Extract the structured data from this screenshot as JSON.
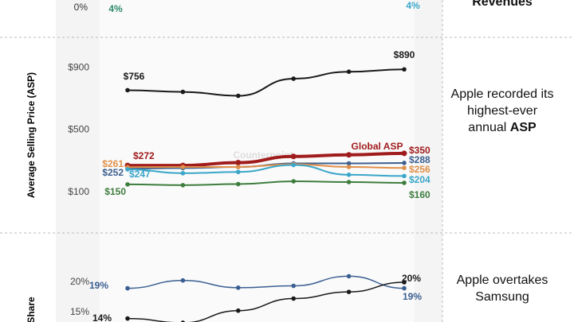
{
  "chart_data": [
    {
      "type": "line",
      "yticks": [
        {
          "value": 0,
          "label": "0%"
        }
      ],
      "annotations": [
        {
          "text": "4%",
          "color": "#2e8b6a"
        },
        {
          "text": "4%",
          "color": "#3aa6c9"
        }
      ],
      "note_bold": "Revenues"
    },
    {
      "type": "line",
      "ylabel": "Average Selling Price (ASP)",
      "ylim": [
        0,
        1000
      ],
      "yticks": [
        {
          "value": 900,
          "label": "$900"
        },
        {
          "value": 500,
          "label": "$500"
        },
        {
          "value": 100,
          "label": "$100"
        }
      ],
      "grid": false,
      "series": [
        {
          "color": "#1a1a1a",
          "width": 2,
          "values": [
            756,
            745,
            720,
            830,
            875,
            890
          ],
          "value_labels": [
            "$756",
            null,
            null,
            null,
            null,
            "$890"
          ]
        },
        {
          "name": "Global ASP",
          "color": "#a01c1c",
          "width": 4,
          "values": [
            272,
            272,
            290,
            330,
            340,
            350
          ],
          "value_labels": [
            "$272",
            null,
            null,
            null,
            null,
            "$350"
          ]
        },
        {
          "color": "#3d5f8f",
          "width": 2,
          "values": [
            252,
            255,
            262,
            285,
            285,
            288
          ],
          "value_labels": [
            "$252",
            null,
            null,
            null,
            null,
            "$288"
          ]
        },
        {
          "color": "#e0904a",
          "width": 2,
          "values": [
            261,
            262,
            262,
            280,
            262,
            256
          ],
          "value_labels": [
            "$261",
            null,
            null,
            null,
            null,
            "$256"
          ]
        },
        {
          "color": "#3aa6c9",
          "width": 2,
          "values": [
            247,
            222,
            230,
            275,
            212,
            204
          ],
          "value_labels": [
            "$247",
            null,
            null,
            null,
            null,
            "$204"
          ]
        },
        {
          "color": "#3e7d3e",
          "width": 2,
          "values": [
            150,
            145,
            152,
            170,
            165,
            160
          ],
          "value_labels": [
            "$150",
            null,
            null,
            null,
            null,
            "$160"
          ]
        }
      ],
      "watermark": "Counterpoint",
      "note": "Apple recorded its highest-ever annual",
      "note_bold": "ASP"
    },
    {
      "type": "line",
      "ylabel": "Share",
      "ylim": [
        12,
        26
      ],
      "yticks": [
        {
          "value": 20,
          "label": "20%"
        },
        {
          "value": 15,
          "label": "15%"
        }
      ],
      "series": [
        {
          "color": "#3b5e92",
          "width": 1.5,
          "values": [
            19,
            20.3,
            19.1,
            19.4,
            21,
            19
          ],
          "value_labels": [
            "19%",
            null,
            null,
            null,
            null,
            "19%"
          ]
        },
        {
          "color": "#1a1a1a",
          "width": 1.5,
          "values": [
            14,
            13.3,
            15.3,
            17.3,
            18.4,
            20
          ],
          "value_labels": [
            "14%",
            null,
            null,
            null,
            null,
            "20%"
          ]
        }
      ],
      "note": "Apple overtakes Samsung"
    }
  ]
}
